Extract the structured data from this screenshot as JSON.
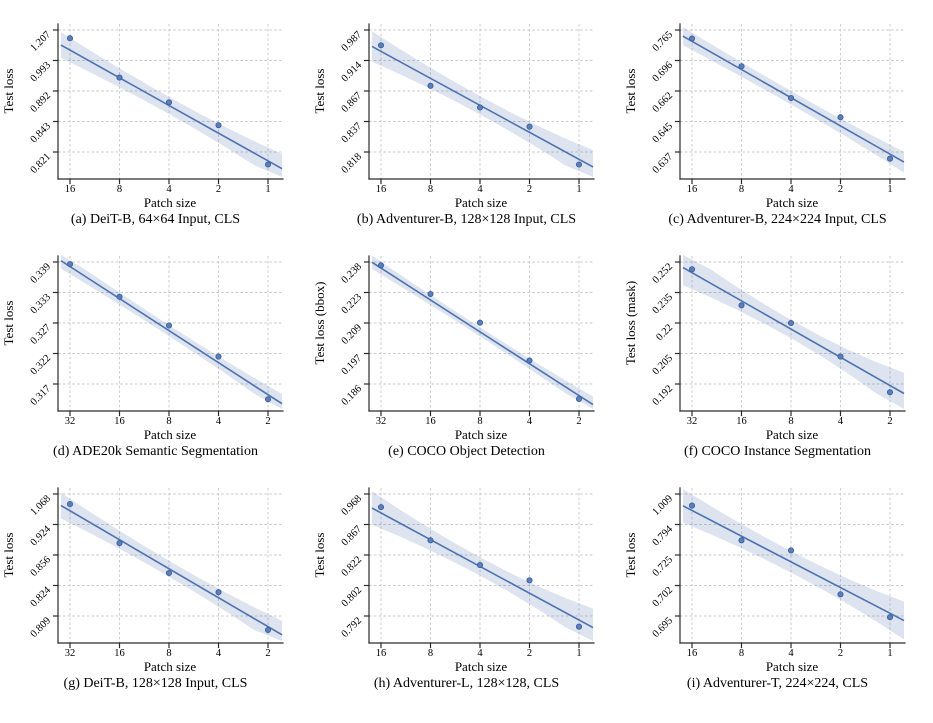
{
  "figure": {
    "description": "3x3 grid of power-law fit plots of test loss versus patch size",
    "shared": {
      "xlabel": "Patch size",
      "colors": {
        "line": "#4C72B0",
        "band": "rgba(76,114,176,0.19)",
        "point_fill": "#5b7fb9",
        "point_edge": "#3c5f9e",
        "grid": "#c9c9c9",
        "spine": "#2b2b2b",
        "text": "#000000"
      }
    }
  },
  "chart_data": [
    {
      "id": "a",
      "type": "scatter",
      "caption": "(a) DeiT-B, 64×64 Input, CLS",
      "ylabel": "Test loss",
      "xlabel": "Patch size",
      "x_tick_labels": [
        "16",
        "8",
        "4",
        "2",
        "1"
      ],
      "y_tick_labels": [
        "1.207",
        "0.993",
        "0.892",
        "0.843",
        "0.821"
      ],
      "x_values": [
        16,
        8,
        4,
        2,
        1
      ],
      "y_values": [
        1.149,
        0.936,
        0.874,
        0.84,
        0.812
      ],
      "fit_line_grid": [
        0.66,
        4.29
      ],
      "points_grid": [
        0.27,
        1.56,
        2.37,
        3.12,
        4.41
      ],
      "band_halfwidth_grid": [
        0.42,
        0.28,
        0.48
      ]
    },
    {
      "id": "b",
      "type": "scatter",
      "caption": "(b) Adventurer-B, 128×128 Input, CLS",
      "ylabel": "Test loss",
      "xlabel": "Patch size",
      "x_tick_labels": [
        "16",
        "8",
        "4",
        "2",
        "1"
      ],
      "y_tick_labels": [
        "0.987",
        "0.914",
        "0.867",
        "0.837",
        "0.818"
      ],
      "x_values": [
        16,
        8,
        4,
        2,
        1
      ],
      "y_values": [
        0.95,
        0.875,
        0.851,
        0.834,
        0.81
      ],
      "fit_line_grid": [
        0.7,
        4.24
      ],
      "points_grid": [
        0.5,
        1.83,
        2.54,
        3.17,
        4.41
      ],
      "band_halfwidth_grid": [
        0.5,
        0.3,
        0.55
      ]
    },
    {
      "id": "c",
      "type": "scatter",
      "caption": "(c) Adventurer-B, 224×224 Input, CLS",
      "ylabel": "Test loss",
      "xlabel": "Patch size",
      "x_tick_labels": [
        "16",
        "8",
        "4",
        "2",
        "1"
      ],
      "y_tick_labels": [
        "0.765",
        "0.696",
        "0.662",
        "0.645",
        "0.637"
      ],
      "x_values": [
        16,
        8,
        4,
        2,
        1
      ],
      "y_values": [
        0.746,
        0.69,
        0.658,
        0.647,
        0.635
      ],
      "fit_line_grid": [
        0.37,
        4.07
      ],
      "points_grid": [
        0.28,
        1.19,
        2.23,
        2.86,
        4.22
      ],
      "band_halfwidth_grid": [
        0.3,
        0.22,
        0.34
      ]
    },
    {
      "id": "d",
      "type": "scatter",
      "caption": "(d) ADE20k Semantic Segmentation",
      "ylabel": "Test loss",
      "xlabel": "Patch size",
      "x_tick_labels": [
        "32",
        "16",
        "8",
        "4",
        "2"
      ],
      "y_tick_labels": [
        "0.339",
        "0.333",
        "0.327",
        "0.322",
        "0.317"
      ],
      "x_values": [
        32,
        16,
        8,
        4,
        2
      ],
      "y_values": [
        0.339,
        0.332,
        0.327,
        0.321,
        0.315
      ],
      "fit_line_grid": [
        0.15,
        4.35
      ],
      "points_grid": [
        0.07,
        1.14,
        2.08,
        3.1,
        4.5
      ],
      "band_halfwidth_grid": [
        0.26,
        0.18,
        0.32
      ]
    },
    {
      "id": "e",
      "type": "scatter",
      "caption": "(e) COCO Object Detection",
      "ylabel": "Test loss (bbox)",
      "xlabel": "Patch size",
      "x_tick_labels": [
        "32",
        "16",
        "8",
        "4",
        "2"
      ],
      "y_tick_labels": [
        "0.238",
        "0.223",
        "0.209",
        "0.197",
        "0.186"
      ],
      "x_values": [
        32,
        16,
        8,
        4,
        2
      ],
      "y_values": [
        0.236,
        0.222,
        0.209,
        0.194,
        0.181
      ],
      "fit_line_grid": [
        0.2,
        4.38
      ],
      "points_grid": [
        0.11,
        1.05,
        1.99,
        3.23,
        4.49
      ],
      "band_halfwidth_grid": [
        0.22,
        0.15,
        0.26
      ]
    },
    {
      "id": "f",
      "type": "scatter",
      "caption": "(f) COCO Instance Segmentation",
      "ylabel": "Test loss (mask)",
      "xlabel": "Patch size",
      "x_tick_labels": [
        "32",
        "16",
        "8",
        "4",
        "2"
      ],
      "y_tick_labels": [
        "0.252",
        "0.235",
        "0.22",
        "0.205",
        "0.192"
      ],
      "x_values": [
        32,
        16,
        8,
        4,
        2
      ],
      "y_values": [
        0.248,
        0.229,
        0.22,
        0.204,
        0.188
      ],
      "fit_line_grid": [
        0.35,
        4.05
      ],
      "points_grid": [
        0.24,
        1.42,
        2.0,
        3.1,
        4.27
      ],
      "band_halfwidth_grid": [
        0.58,
        0.3,
        0.68
      ]
    },
    {
      "id": "g",
      "type": "scatter",
      "caption": "(g) DeiT-B, 128×128 Input, CLS",
      "ylabel": "Test loss",
      "xlabel": "Patch size",
      "x_tick_labels": [
        "32",
        "16",
        "8",
        "4",
        "2"
      ],
      "y_tick_labels": [
        "1.068",
        "0.924",
        "0.856",
        "0.824",
        "0.809"
      ],
      "x_values": [
        32,
        16,
        8,
        4,
        2
      ],
      "y_values": [
        1.02,
        0.883,
        0.837,
        0.821,
        0.802
      ],
      "fit_line_grid": [
        0.55,
        4.35
      ],
      "points_grid": [
        0.33,
        1.61,
        2.59,
        3.22,
        4.46
      ],
      "band_halfwidth_grid": [
        0.42,
        0.26,
        0.46
      ]
    },
    {
      "id": "h",
      "type": "scatter",
      "caption": "(h) Adventurer-L, 128×128, CLS",
      "ylabel": "Test loss",
      "xlabel": "Patch size",
      "x_tick_labels": [
        "16",
        "8",
        "4",
        "2",
        "1"
      ],
      "y_tick_labels": [
        "0.968",
        "0.867",
        "0.822",
        "0.802",
        "0.792"
      ],
      "x_values": [
        16,
        8,
        4,
        2,
        1
      ],
      "y_values": [
        0.925,
        0.844,
        0.815,
        0.805,
        0.789
      ],
      "fit_line_grid": [
        0.62,
        4.13
      ],
      "points_grid": [
        0.43,
        1.52,
        2.33,
        2.83,
        4.35
      ],
      "band_halfwidth_grid": [
        0.55,
        0.3,
        0.62
      ]
    },
    {
      "id": "i",
      "type": "scatter",
      "caption": "(i) Adventurer-T, 224×224, CLS",
      "ylabel": "Test loss",
      "xlabel": "Patch size",
      "x_tick_labels": [
        "16",
        "8",
        "4",
        "2",
        "1"
      ],
      "y_tick_labels": [
        "1.009",
        "0.794",
        "0.725",
        "0.702",
        "0.695"
      ],
      "x_values": [
        16,
        8,
        4,
        2,
        1
      ],
      "y_values": [
        0.927,
        0.758,
        0.735,
        0.7,
        0.695
      ],
      "fit_line_grid": [
        0.54,
        3.91
      ],
      "points_grid": [
        0.38,
        1.52,
        1.85,
        3.29,
        4.04
      ],
      "band_halfwidth_grid": [
        0.55,
        0.35,
        0.62
      ]
    }
  ]
}
